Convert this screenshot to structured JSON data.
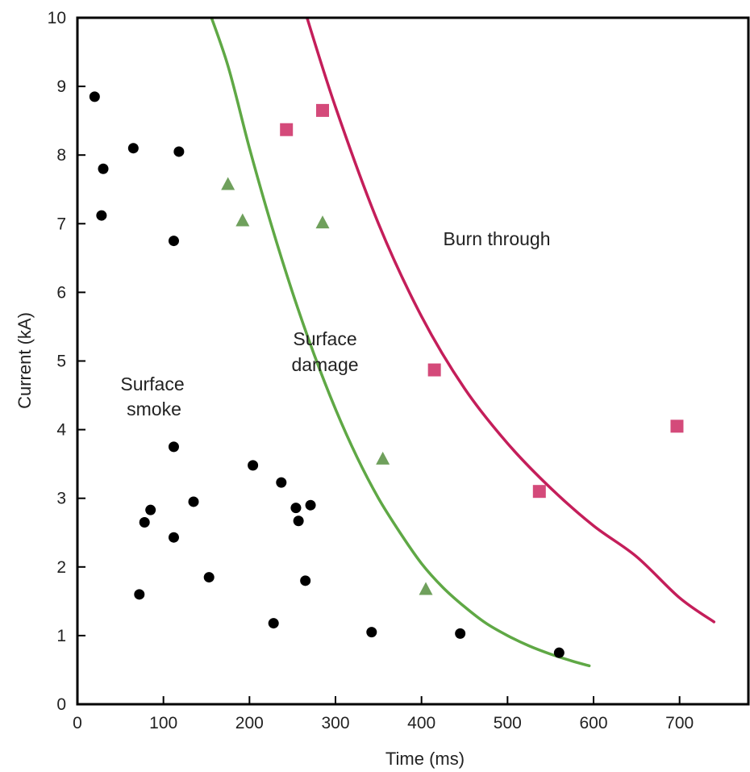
{
  "chart_data": {
    "type": "scatter",
    "xlabel": "Time (ms)",
    "ylabel": "Current (kA)",
    "xlim": [
      0,
      780
    ],
    "ylim": [
      0,
      10
    ],
    "x_ticks": [
      "0",
      "100",
      "200",
      "300",
      "400",
      "500",
      "600",
      "700"
    ],
    "y_ticks": [
      "0",
      "1",
      "2",
      "3",
      "4",
      "5",
      "6",
      "7",
      "8",
      "9",
      "10"
    ],
    "grid": false,
    "series": [
      {
        "marker": "circle",
        "color": "#000000",
        "points": [
          [
            20,
            8.85
          ],
          [
            30,
            7.8
          ],
          [
            28,
            7.12
          ],
          [
            65,
            8.1
          ],
          [
            118,
            8.05
          ],
          [
            112,
            6.75
          ],
          [
            112,
            3.75
          ],
          [
            135,
            2.95
          ],
          [
            85,
            2.83
          ],
          [
            78,
            2.65
          ],
          [
            112,
            2.43
          ],
          [
            72,
            1.6
          ],
          [
            153,
            1.85
          ],
          [
            204,
            3.48
          ],
          [
            237,
            3.23
          ],
          [
            254,
            2.86
          ],
          [
            257,
            2.67
          ],
          [
            271,
            2.9
          ],
          [
            228,
            1.18
          ],
          [
            265,
            1.8
          ],
          [
            342,
            1.05
          ],
          [
            445,
            1.03
          ],
          [
            560,
            0.75
          ]
        ]
      },
      {
        "marker": "triangle",
        "color": "#6fa05c",
        "points": [
          [
            175,
            7.58
          ],
          [
            192,
            7.05
          ],
          [
            285,
            7.02
          ],
          [
            355,
            3.58
          ],
          [
            405,
            1.68
          ]
        ]
      },
      {
        "marker": "square",
        "color": "#d44a7a",
        "points": [
          [
            243,
            8.37
          ],
          [
            285,
            8.65
          ],
          [
            415,
            4.87
          ],
          [
            537,
            3.1
          ],
          [
            697,
            4.05
          ]
        ]
      }
    ],
    "curves": [
      {
        "color": "#5fa845",
        "points": [
          [
            150,
            10.2
          ],
          [
            175,
            9.3
          ],
          [
            200,
            8.1
          ],
          [
            225,
            7.0
          ],
          [
            250,
            6.0
          ],
          [
            275,
            5.1
          ],
          [
            300,
            4.3
          ],
          [
            325,
            3.6
          ],
          [
            350,
            3.0
          ],
          [
            375,
            2.5
          ],
          [
            400,
            2.05
          ],
          [
            425,
            1.7
          ],
          [
            450,
            1.42
          ],
          [
            475,
            1.18
          ],
          [
            500,
            1.0
          ],
          [
            525,
            0.85
          ],
          [
            550,
            0.73
          ],
          [
            575,
            0.63
          ],
          [
            595,
            0.56
          ]
        ]
      },
      {
        "color": "#c41e5a",
        "points": [
          [
            262,
            10.2
          ],
          [
            300,
            8.7
          ],
          [
            350,
            7.0
          ],
          [
            400,
            5.65
          ],
          [
            450,
            4.6
          ],
          [
            500,
            3.8
          ],
          [
            550,
            3.15
          ],
          [
            600,
            2.6
          ],
          [
            650,
            2.15
          ],
          [
            700,
            1.55
          ],
          [
            740,
            1.2
          ]
        ]
      }
    ],
    "annotations": {
      "burn_through": "Burn through",
      "surface_damage_1": "Surface",
      "surface_damage_2": "damage",
      "surface_smoke_1": "Surface",
      "surface_smoke_2": "smoke"
    }
  }
}
